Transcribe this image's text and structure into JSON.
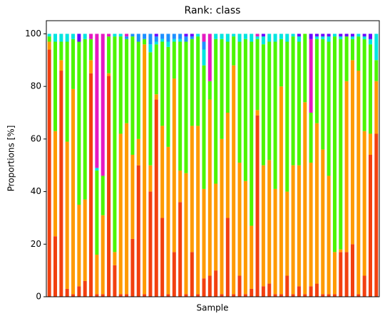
{
  "chart_data": {
    "type": "stacked_bar",
    "title": "Rank: class",
    "xlabel": "Sample",
    "ylabel": "Proportions [%]",
    "ylim": [
      0,
      105
    ],
    "yticks": [
      0,
      20,
      40,
      60,
      80,
      100
    ],
    "series": [
      {
        "color": "#f2400f",
        "values": [
          94,
          23,
          86,
          3,
          1,
          4,
          6,
          85,
          1,
          1,
          84,
          12,
          1,
          1,
          22,
          50,
          1,
          40,
          75,
          30,
          1,
          17,
          36,
          1,
          17,
          1,
          7,
          8,
          10,
          1,
          30,
          1,
          8,
          1,
          3,
          69,
          4,
          5,
          1,
          1,
          8,
          1,
          4,
          1,
          4,
          5,
          1,
          1,
          1,
          17,
          17,
          20,
          1,
          8,
          54,
          62
        ]
      },
      {
        "color": "#ff9a00",
        "values": [
          3,
          40,
          4,
          56,
          78,
          31,
          31,
          5,
          15,
          30,
          1,
          5,
          61,
          65,
          32,
          10,
          95,
          10,
          2,
          35,
          56,
          66,
          12,
          46,
          48,
          64,
          34,
          67,
          33,
          59,
          40,
          87,
          43,
          43,
          24,
          2,
          46,
          47,
          40,
          79,
          32,
          49,
          46,
          73,
          47,
          61,
          55,
          45,
          16,
          1,
          65,
          70,
          85,
          55,
          8,
          20
        ]
      },
      {
        "color": "#4cf500",
        "values": [
          2,
          34,
          7,
          38,
          19,
          62,
          61,
          8,
          32,
          15,
          14,
          82,
          37,
          32,
          45,
          37,
          2,
          43,
          19,
          32,
          38,
          14,
          49,
          50,
          33,
          34,
          47,
          7,
          55,
          38,
          27,
          11,
          46,
          54,
          70,
          27,
          46,
          45,
          56,
          18,
          57,
          49,
          47,
          26,
          19,
          32,
          42,
          51,
          82,
          80,
          17,
          8,
          13,
          35,
          34,
          8
        ]
      },
      {
        "color": "#00e5e0",
        "values": [
          1,
          3,
          3,
          3,
          2,
          0,
          2,
          0,
          1,
          0,
          0,
          1,
          1,
          0,
          0,
          0,
          0,
          3,
          1,
          1,
          2,
          1,
          1,
          0,
          0,
          1,
          6,
          0,
          2,
          2,
          3,
          1,
          3,
          2,
          3,
          1,
          3,
          3,
          3,
          2,
          3,
          1,
          2,
          0,
          0,
          1,
          1,
          2,
          1,
          1,
          0,
          1,
          1,
          1,
          2,
          10
        ]
      },
      {
        "color": "#1e90ff",
        "values": [
          0,
          0,
          0,
          0,
          0,
          0,
          0,
          0,
          0,
          0,
          0,
          0,
          0,
          1,
          1,
          3,
          2,
          4,
          2,
          2,
          3,
          2,
          2,
          2,
          1,
          0,
          3,
          0,
          0,
          0,
          0,
          0,
          0,
          0,
          0,
          0,
          0,
          0,
          0,
          0,
          0,
          0,
          0,
          0,
          0,
          0,
          0,
          0,
          0,
          0,
          0,
          0,
          0,
          0,
          0,
          0
        ]
      },
      {
        "color": "#e619c2",
        "values": [
          0,
          0,
          0,
          0,
          0,
          0,
          0,
          2,
          51,
          54,
          1,
          0,
          0,
          1,
          0,
          0,
          0,
          0,
          0,
          0,
          0,
          0,
          0,
          0,
          0,
          0,
          3,
          18,
          0,
          0,
          0,
          0,
          0,
          0,
          0,
          1,
          0,
          0,
          0,
          0,
          0,
          0,
          0,
          0,
          28,
          0,
          0,
          0,
          0,
          0,
          0,
          0,
          0,
          0,
          0,
          0
        ]
      },
      {
        "color": "#6a00ff",
        "values": [
          0,
          0,
          0,
          0,
          0,
          3,
          0,
          0,
          0,
          0,
          0,
          0,
          0,
          0,
          0,
          0,
          0,
          0,
          1,
          0,
          0,
          0,
          0,
          1,
          1,
          0,
          0,
          0,
          0,
          0,
          0,
          0,
          0,
          0,
          0,
          0,
          1,
          0,
          0,
          0,
          0,
          0,
          1,
          0,
          2,
          1,
          1,
          1,
          0,
          1,
          1,
          1,
          0,
          1,
          2,
          0
        ]
      }
    ]
  }
}
